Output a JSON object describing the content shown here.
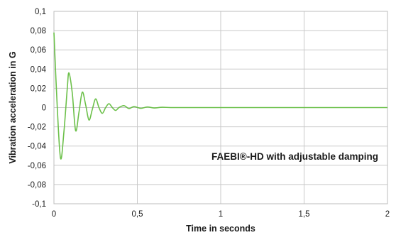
{
  "chart_data": {
    "type": "line",
    "title": "",
    "xlabel": "Time in seconds",
    "ylabel": "Vibration acceleration in G",
    "xlim": [
      0,
      2
    ],
    "ylim": [
      -0.1,
      0.1
    ],
    "x_ticks": [
      "0",
      "0,5",
      "1",
      "1,5",
      "2"
    ],
    "y_ticks": [
      "0,1",
      "0,08",
      "0,06",
      "0,04",
      "0,02",
      "0",
      "-0,02",
      "-0,04",
      "-0,06",
      "-0,08",
      "-0,1"
    ],
    "grid": true,
    "annotation": "FAEBI®-HD with adjustable damping",
    "series": [
      {
        "color": "#6cc04a",
        "points": [
          [
            0,
            0.078
          ],
          [
            0.02,
            0.0
          ],
          [
            0.04,
            -0.053
          ],
          [
            0.06,
            -0.025
          ],
          [
            0.08,
            0.02
          ],
          [
            0.09,
            0.036
          ],
          [
            0.11,
            0.015
          ],
          [
            0.13,
            -0.024
          ],
          [
            0.15,
            -0.005
          ],
          [
            0.17,
            0.016
          ],
          [
            0.19,
            0.003
          ],
          [
            0.21,
            -0.013
          ],
          [
            0.23,
            -0.002
          ],
          [
            0.25,
            0.009
          ],
          [
            0.27,
            0.0
          ],
          [
            0.29,
            -0.006
          ],
          [
            0.31,
            0.0
          ],
          [
            0.33,
            0.004
          ],
          [
            0.35,
            0.0
          ],
          [
            0.37,
            -0.003
          ],
          [
            0.39,
            0.0
          ],
          [
            0.42,
            0.002
          ],
          [
            0.45,
            -0.001
          ],
          [
            0.48,
            0.001
          ],
          [
            0.52,
            -0.0008
          ],
          [
            0.56,
            0.0006
          ],
          [
            0.6,
            -0.0004
          ],
          [
            0.65,
            0.0003
          ],
          [
            0.7,
            0.0
          ],
          [
            0.8,
            0.0
          ],
          [
            1.0,
            0.0
          ],
          [
            1.5,
            0.0
          ],
          [
            2.0,
            0.0
          ]
        ]
      }
    ]
  }
}
